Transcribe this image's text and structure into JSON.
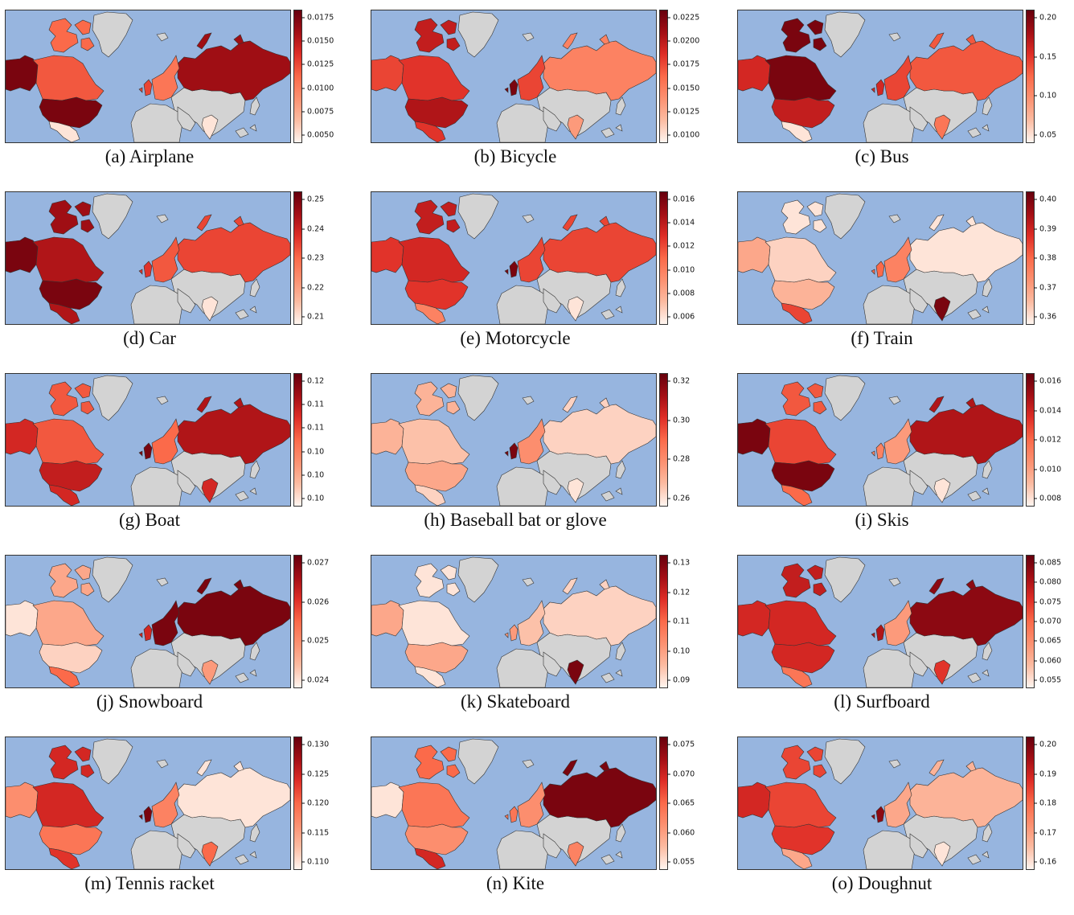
{
  "colors": {
    "ocean": "#97b5df",
    "no_data": "#d3d3d3",
    "border": "#333333",
    "scale": [
      "#fff5f0",
      "#fcbba1",
      "#fc9272",
      "#fb6a4a",
      "#de2d26",
      "#a50f15",
      "#67000d"
    ]
  },
  "panels": [
    {
      "caption": "(a) Airplane",
      "ticks": [
        "0.0175",
        "0.0150",
        "0.0125",
        "0.0100",
        "0.0075",
        "0.0050"
      ],
      "levels": {
        "alaska": 0.95,
        "canada": 0.55,
        "usa": 0.95,
        "mexico": 0.05,
        "arctic": 0.5,
        "russia": 0.85,
        "uk": 0.6,
        "europe": 0.45,
        "india": 0.05
      }
    },
    {
      "caption": "(b) Bicycle",
      "ticks": [
        "0.0225",
        "0.0200",
        "0.0175",
        "0.0150",
        "0.0125",
        "0.0100"
      ],
      "levels": {
        "alaska": 0.6,
        "canada": 0.65,
        "usa": 0.8,
        "mexico": 0.65,
        "arctic": 0.75,
        "russia": 0.4,
        "uk": 0.95,
        "europe": 0.6,
        "india": 0.3
      }
    },
    {
      "caption": "(c) Bus",
      "ticks": [
        "0.20",
        "0.15",
        "0.10",
        "0.05"
      ],
      "levels": {
        "alaska": 0.7,
        "canada": 0.95,
        "usa": 0.75,
        "mexico": 0.05,
        "arctic": 0.95,
        "russia": 0.55,
        "uk": 0.7,
        "europe": 0.6,
        "india": 0.45
      }
    },
    {
      "caption": "(d) Car",
      "ticks": [
        "0.25",
        "0.24",
        "0.23",
        "0.22",
        "0.21"
      ],
      "levels": {
        "alaska": 0.95,
        "canada": 0.8,
        "usa": 0.95,
        "mexico": 0.8,
        "arctic": 0.85,
        "russia": 0.6,
        "uk": 0.65,
        "europe": 0.55,
        "india": 0.05
      }
    },
    {
      "caption": "(e) Motorcycle",
      "ticks": [
        "0.016",
        "0.014",
        "0.012",
        "0.010",
        "0.008",
        "0.006"
      ],
      "levels": {
        "alaska": 0.65,
        "canada": 0.7,
        "usa": 0.65,
        "mexico": 0.4,
        "arctic": 0.75,
        "russia": 0.6,
        "uk": 0.95,
        "europe": 0.6,
        "india": 0.05
      }
    },
    {
      "caption": "(f) Train",
      "ticks": [
        "0.40",
        "0.39",
        "0.38",
        "0.37",
        "0.36"
      ],
      "levels": {
        "alaska": 0.25,
        "canada": 0.1,
        "usa": 0.2,
        "mexico": 0.6,
        "arctic": 0.05,
        "russia": 0.05,
        "uk": 0.5,
        "europe": 0.4,
        "india": 0.95
      }
    },
    {
      "caption": "(g) Boat",
      "ticks": [
        "0.12",
        "0.11",
        "0.11",
        "0.10",
        "0.10",
        "0.10"
      ],
      "levels": {
        "alaska": 0.7,
        "canada": 0.55,
        "usa": 0.75,
        "mexico": 0.7,
        "arctic": 0.55,
        "russia": 0.8,
        "uk": 0.95,
        "europe": 0.5,
        "india": 0.7
      }
    },
    {
      "caption": "(h) Baseball bat or glove",
      "ticks": [
        "0.32",
        "0.30",
        "0.28",
        "0.26"
      ],
      "levels": {
        "alaska": 0.2,
        "canada": 0.15,
        "usa": 0.25,
        "mexico": 0.1,
        "arctic": 0.2,
        "russia": 0.1,
        "uk": 0.95,
        "europe": 0.35,
        "india": 0.05
      }
    },
    {
      "caption": "(i) Skis",
      "ticks": [
        "0.016",
        "0.014",
        "0.012",
        "0.010",
        "0.008"
      ],
      "levels": {
        "alaska": 0.95,
        "canada": 0.6,
        "usa": 0.95,
        "mexico": 0.5,
        "arctic": 0.55,
        "russia": 0.8,
        "uk": 0.4,
        "europe": 0.3,
        "india": 0.05
      }
    },
    {
      "caption": "(j) Snowboard",
      "ticks": [
        "0.027",
        "0.026",
        "0.025",
        "0.024"
      ],
      "levels": {
        "alaska": 0.05,
        "canada": 0.25,
        "usa": 0.1,
        "mexico": 0.5,
        "arctic": 0.25,
        "russia": 0.95,
        "uk": 0.7,
        "europe": 0.95,
        "india": 0.3
      }
    },
    {
      "caption": "(k) Skateboard",
      "ticks": [
        "0.13",
        "0.12",
        "0.11",
        "0.10",
        "0.09"
      ],
      "levels": {
        "alaska": 0.25,
        "canada": 0.05,
        "usa": 0.25,
        "mexico": 0.05,
        "arctic": 0.05,
        "russia": 0.1,
        "uk": 0.3,
        "europe": 0.15,
        "india": 0.95
      }
    },
    {
      "caption": "(l) Surfboard",
      "ticks": [
        "0.085",
        "0.080",
        "0.075",
        "0.070",
        "0.065",
        "0.060",
        "0.055"
      ],
      "levels": {
        "alaska": 0.7,
        "canada": 0.7,
        "usa": 0.7,
        "mexico": 0.45,
        "arctic": 0.75,
        "russia": 0.9,
        "uk": 0.8,
        "europe": 0.3,
        "india": 0.65
      }
    },
    {
      "caption": "(m) Tennis racket",
      "ticks": [
        "0.130",
        "0.125",
        "0.120",
        "0.115",
        "0.110"
      ],
      "levels": {
        "alaska": 0.35,
        "canada": 0.7,
        "usa": 0.45,
        "mexico": 0.65,
        "arctic": 0.7,
        "russia": 0.05,
        "uk": 0.95,
        "europe": 0.4,
        "india": 0.5
      }
    },
    {
      "caption": "(n) Kite",
      "ticks": [
        "0.075",
        "0.070",
        "0.065",
        "0.060",
        "0.055"
      ],
      "levels": {
        "alaska": 0.05,
        "canada": 0.45,
        "usa": 0.35,
        "mexico": 0.7,
        "arctic": 0.5,
        "russia": 0.95,
        "uk": 0.45,
        "europe": 0.35,
        "india": 0.4
      }
    },
    {
      "caption": "(o) Doughnut",
      "ticks": [
        "0.20",
        "0.19",
        "0.18",
        "0.17",
        "0.16"
      ],
      "levels": {
        "alaska": 0.7,
        "canada": 0.6,
        "usa": 0.65,
        "mexico": 0.25,
        "arctic": 0.6,
        "russia": 0.2,
        "uk": 0.9,
        "europe": 0.25,
        "india": 0.05
      }
    }
  ]
}
